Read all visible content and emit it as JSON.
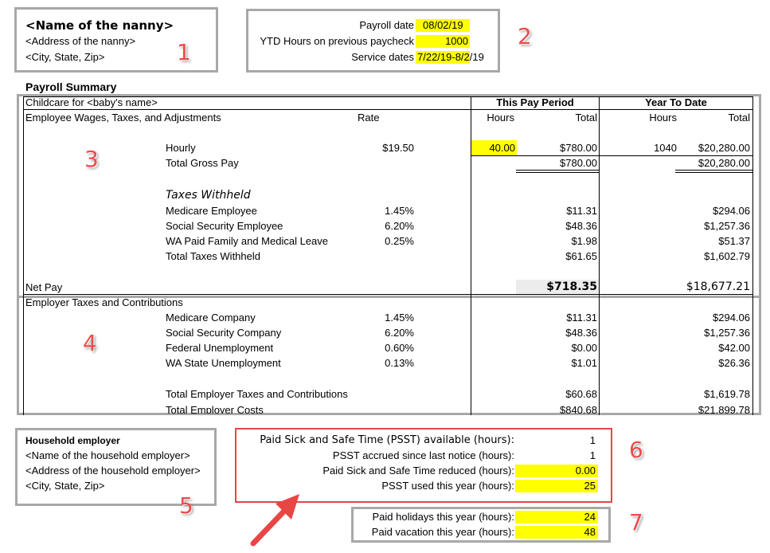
{
  "nanny": {
    "name": "<Name of the nanny>",
    "address": "<Address of the nanny>",
    "city": "<City, State, Zip>"
  },
  "markers": [
    "1",
    "2",
    "3",
    "4",
    "5",
    "6",
    "7"
  ],
  "payroll_info": {
    "payroll_date_label": "Payroll date",
    "payroll_date": "08/02/19",
    "ytd_hours_label": "YTD Hours on previous paycheck",
    "ytd_hours": "1000",
    "service_dates_label": "Service dates",
    "service_dates_hl": "7/22/19-8/",
    "service_dates_rest": "2/19"
  },
  "summary": {
    "title": "Payroll Summary",
    "childcare_for": "Childcare for <baby's name>",
    "this_pay_period": "This Pay Period",
    "year_to_date": "Year To Date",
    "wages_header": "Employee Wages, Taxes, and Adjustments",
    "rate_header": "Rate",
    "hours_header": "Hours",
    "total_header": "Total",
    "hourly": {
      "label": "Hourly",
      "rate": "$19.50",
      "hours": "40.00",
      "total": "$780.00",
      "ytd_hours": "1040",
      "ytd_total": "$20,280.00"
    },
    "gross": {
      "label": "Total Gross Pay",
      "total": "$780.00",
      "ytd_total": "$20,280.00"
    },
    "taxes_withheld_label": "Taxes Withheld",
    "taxes": [
      {
        "label": "Medicare Employee",
        "rate": "1.45%",
        "total": "$11.31",
        "ytd": "$294.06"
      },
      {
        "label": "Social Security Employee",
        "rate": "6.20%",
        "total": "$48.36",
        "ytd": "$1,257.36"
      },
      {
        "label": "WA Paid Family and Medical Leave",
        "rate": "0.25%",
        "total": "$1.98",
        "ytd": "$51.37"
      },
      {
        "label": "Total Taxes Withheld",
        "rate": "",
        "total": "$61.65",
        "ytd": "$1,602.79"
      }
    ],
    "net_pay": {
      "label": "Net Pay",
      "total": "$718.35",
      "ytd": "$18,677.21"
    },
    "employer_header": "Employer Taxes and Contributions",
    "employer": [
      {
        "label": "Medicare Company",
        "rate": "1.45%",
        "total": "$11.31",
        "ytd": "$294.06"
      },
      {
        "label": "Social Security Company",
        "rate": "6.20%",
        "total": "$48.36",
        "ytd": "$1,257.36"
      },
      {
        "label": "Federal Unemployment",
        "rate": "0.60%",
        "total": "$0.00",
        "ytd": "$42.00"
      },
      {
        "label": "WA State Unemployment",
        "rate": "0.13%",
        "total": "$1.01",
        "ytd": "$26.36"
      }
    ],
    "employer_total": {
      "label": "Total Employer Taxes and Contributions",
      "total": "$60.68",
      "ytd": "$1,619.78"
    },
    "employer_costs": {
      "label": "Total Employer Costs",
      "total": "$840.68",
      "ytd": "$21,899.78"
    }
  },
  "household": {
    "title": "Household employer",
    "name": "<Name of the household employer>",
    "address": "<Address of the household employer>",
    "city": "<City, State, Zip>"
  },
  "psst": [
    {
      "label": "Paid Sick and Safe Time (PSST) available (hours):",
      "value": "1"
    },
    {
      "label": "PSST accrued since last notice (hours):",
      "value": "1"
    },
    {
      "label": "Paid Sick and Safe Time reduced (hours):",
      "value": "0.00"
    },
    {
      "label": "PSST used this year (hours):",
      "value": "25"
    }
  ],
  "holidays": [
    {
      "label": "Paid holidays this year (hours):",
      "value": "24"
    },
    {
      "label": "Paid vacation this year (hours):",
      "value": "48"
    }
  ]
}
